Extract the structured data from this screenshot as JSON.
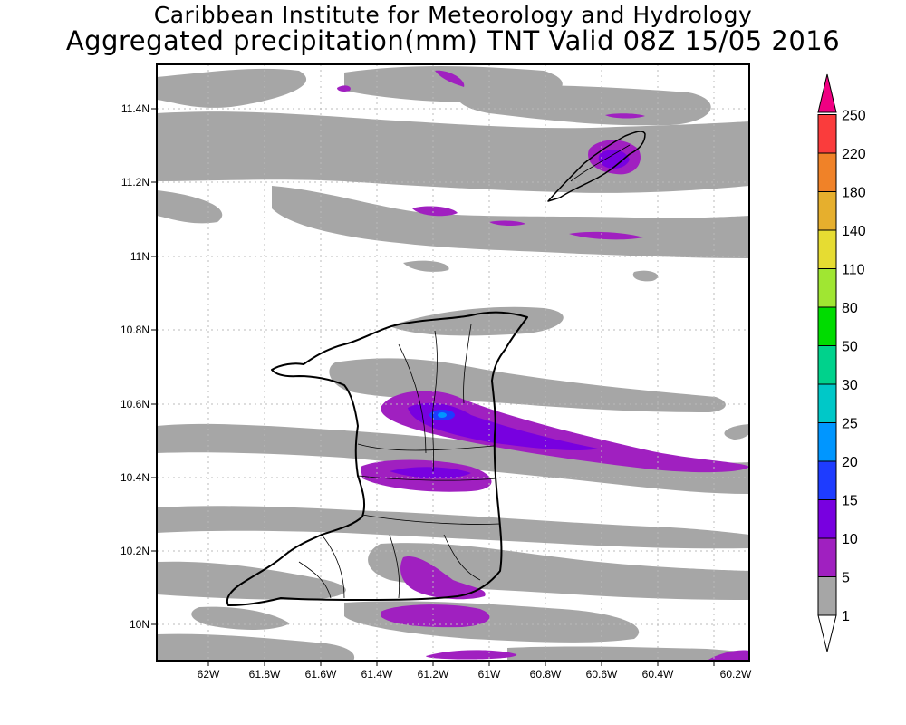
{
  "header": {
    "institute": "Caribbean Institute for Meteorology and Hydrology",
    "product": "Aggregated precipitation(mm) TNT Valid 08Z 15/05 2016"
  },
  "map": {
    "lat_labels": [
      "11.4N",
      "11.2N",
      "11N",
      "10.8N",
      "10.6N",
      "10.4N",
      "10.2N",
      "10N"
    ],
    "lon_labels": [
      "62W",
      "61.8W",
      "61.6W",
      "61.4W",
      "61.2W",
      "61W",
      "60.8W",
      "60.6W",
      "60.4W",
      "60.2W"
    ],
    "lat_range": [
      9.9,
      11.5
    ],
    "lon_range": [
      -62.05,
      -60.15
    ],
    "grid": true
  },
  "legend": {
    "levels": [
      {
        "label": "1",
        "color": "#a6a6a6"
      },
      {
        "label": "5",
        "color": "#a020c0"
      },
      {
        "label": "10",
        "color": "#7800e0"
      },
      {
        "label": "15",
        "color": "#1e3cff"
      },
      {
        "label": "20",
        "color": "#0096ff"
      },
      {
        "label": "25",
        "color": "#00c8c8"
      },
      {
        "label": "30",
        "color": "#00d28c"
      },
      {
        "label": "50",
        "color": "#00dc00"
      },
      {
        "label": "80",
        "color": "#a0e632"
      },
      {
        "label": "110",
        "color": "#e6dc32"
      },
      {
        "label": "140",
        "color": "#e6af2d"
      },
      {
        "label": "180",
        "color": "#f08228"
      },
      {
        "label": "220",
        "color": "#fa3c3c"
      },
      {
        "label": "250",
        "color": "#f00082"
      }
    ]
  }
}
